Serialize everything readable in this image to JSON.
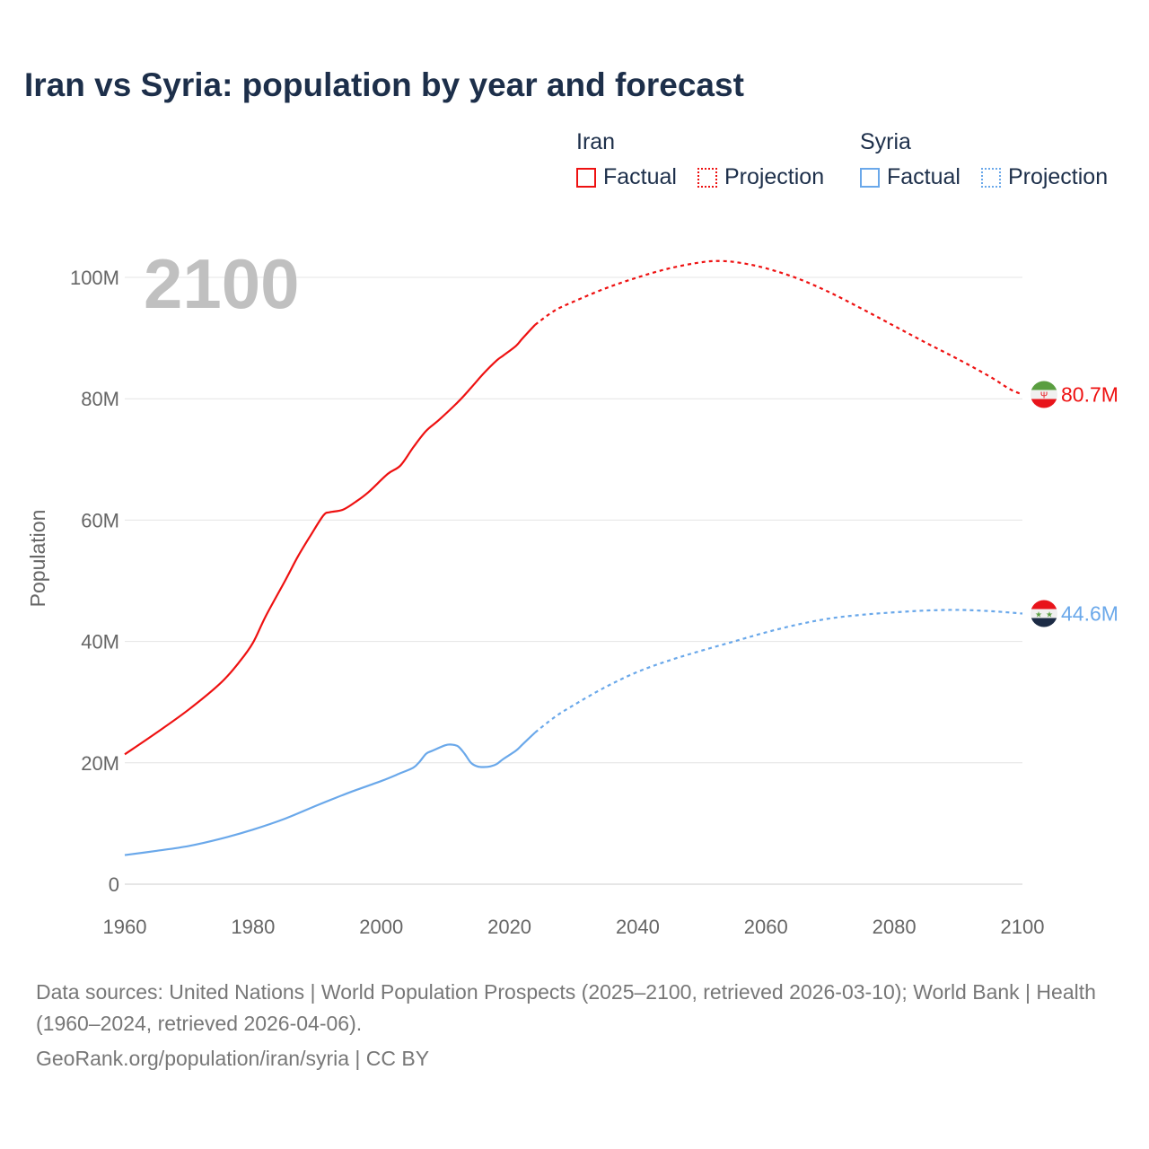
{
  "title": "Iran vs Syria: population by year and forecast",
  "legend": {
    "groups": [
      {
        "name": "Iran",
        "factual": "Factual",
        "projection": "Projection",
        "color": "#ee1111"
      },
      {
        "name": "Syria",
        "factual": "Factual",
        "projection": "Projection",
        "color": "#6aa8ea"
      }
    ]
  },
  "current_year": "2100",
  "footer": {
    "sources": "Data sources: United Nations | World Population Prospects (2025–2100, retrieved 2026-03-10); World Bank | Health (1960–2024, retrieved 2026-04-06).",
    "credit": "GeoRank.org/population/iran/syria | CC BY"
  },
  "chart_data": {
    "type": "line",
    "title": "Iran vs Syria: population by year and forecast",
    "xlabel": "",
    "ylabel": "Population",
    "xlim": [
      1960,
      2100
    ],
    "ylim": [
      0,
      100000000
    ],
    "x_ticks": [
      "1960",
      "1980",
      "2000",
      "2020",
      "2040",
      "2060",
      "2080",
      "2100"
    ],
    "x_tick_values": [
      1960,
      1980,
      2000,
      2020,
      2040,
      2060,
      2080,
      2100
    ],
    "y_ticks": [
      "0",
      "20M",
      "40M",
      "60M",
      "80M",
      "100M"
    ],
    "y_tick_values": [
      0,
      20,
      40,
      60,
      80,
      100
    ],
    "y_unit": "millions",
    "grid": true,
    "series": [
      {
        "name": "Iran",
        "color": "#ee1111",
        "end_label": "80.7M",
        "flag": "iran-flag",
        "factual": {
          "x": [
            1960,
            1965,
            1970,
            1975,
            1978,
            1980,
            1982,
            1985,
            1987,
            1989,
            1991,
            1992,
            1994,
            1996,
            1998,
            2001,
            2003,
            2005,
            2007,
            2009,
            2012,
            2014,
            2016,
            2018,
            2019,
            2021,
            2022,
            2024
          ],
          "y": [
            21.4,
            25.0,
            28.8,
            33.2,
            36.8,
            39.8,
            44.2,
            50.0,
            54.0,
            57.5,
            60.8,
            61.3,
            61.7,
            63.0,
            64.6,
            67.6,
            69.0,
            72.0,
            74.7,
            76.5,
            79.5,
            81.8,
            84.2,
            86.3,
            87.1,
            88.7,
            89.9,
            92.2
          ]
        },
        "projection": {
          "x": [
            2024,
            2027,
            2030,
            2035,
            2040,
            2045,
            2050,
            2053,
            2056,
            2060,
            2065,
            2070,
            2075,
            2080,
            2085,
            2090,
            2095,
            2098,
            2100
          ],
          "y": [
            92.2,
            94.5,
            96.0,
            98.2,
            100.0,
            101.5,
            102.5,
            102.7,
            102.4,
            101.5,
            99.8,
            97.5,
            94.8,
            92.0,
            89.2,
            86.5,
            83.6,
            81.6,
            80.7
          ]
        }
      },
      {
        "name": "Syria",
        "color": "#6aa8ea",
        "end_label": "44.6M",
        "flag": "syria-flag",
        "factual": {
          "x": [
            1960,
            1965,
            1970,
            1975,
            1980,
            1985,
            1990,
            1995,
            2000,
            2003,
            2005,
            2006,
            2007,
            2008,
            2010,
            2011,
            2012,
            2013,
            2014,
            2015,
            2016,
            2017,
            2018,
            2019,
            2021,
            2022,
            2024
          ],
          "y": [
            4.8,
            5.5,
            6.3,
            7.5,
            9.0,
            10.8,
            13.0,
            15.1,
            17.0,
            18.3,
            19.2,
            20.2,
            21.5,
            22.0,
            22.9,
            23.0,
            22.7,
            21.5,
            20.0,
            19.4,
            19.3,
            19.4,
            19.8,
            20.6,
            22.0,
            23.0,
            25.0
          ]
        },
        "projection": {
          "x": [
            2024,
            2027,
            2030,
            2035,
            2040,
            2045,
            2050,
            2055,
            2060,
            2065,
            2070,
            2075,
            2080,
            2085,
            2090,
            2095,
            2100
          ],
          "y": [
            25.0,
            27.5,
            29.5,
            32.5,
            35.0,
            36.9,
            38.5,
            40.0,
            41.5,
            42.8,
            43.8,
            44.4,
            44.8,
            45.1,
            45.2,
            45.0,
            44.6
          ]
        }
      }
    ]
  }
}
